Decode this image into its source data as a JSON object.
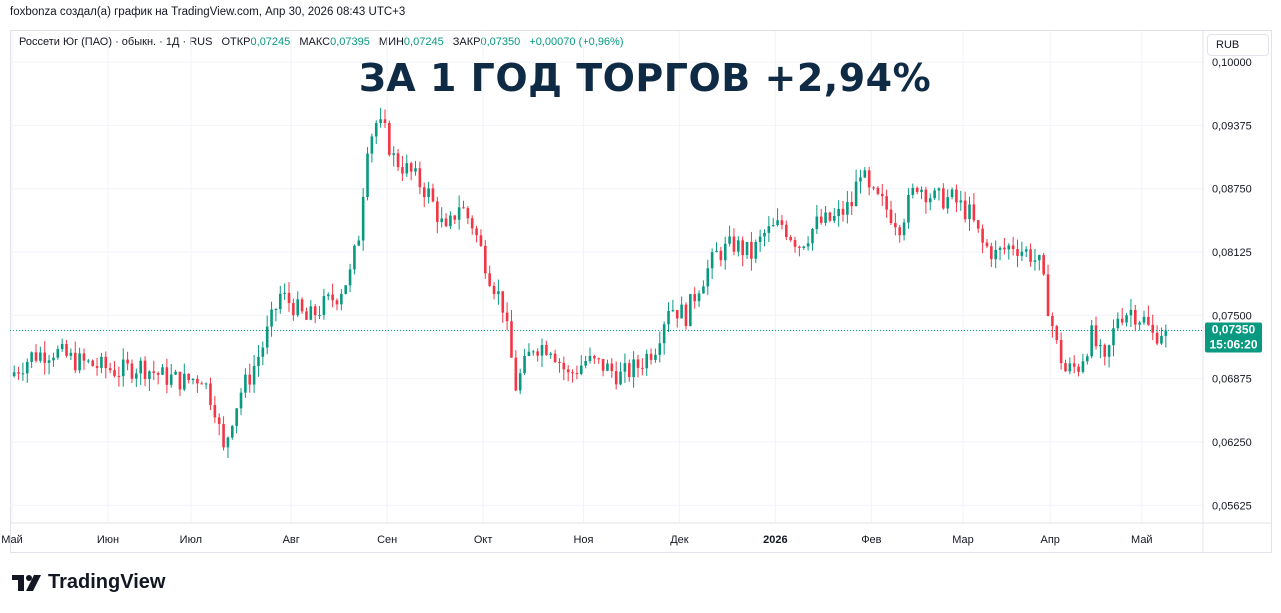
{
  "header": {
    "text": "foxbonza создал(а) график на TradingView.com, Апр 30, 2026 08:43 UTC+3"
  },
  "legend": {
    "symbol": "Россети Юг (ПАО) · обыкн. · 1Д · RUS",
    "open_label": "ОТКР",
    "open": "0,07245",
    "high_label": "МАКС",
    "high": "0,07395",
    "low_label": "МИН",
    "low": "0,07245",
    "close_label": "ЗАКР",
    "close": "0,07350",
    "change": "+0,00070 (+0,96%)"
  },
  "currency_button": "RUB",
  "overlay_title": "ЗА 1 ГОД ТОРГОВ +2,94%",
  "price_tag": {
    "price": "0,07350",
    "countdown": "15:06:20"
  },
  "brand": {
    "name": "TradingView"
  },
  "colors": {
    "up": "#089981",
    "down": "#f23645",
    "grid": "#f0f3fa",
    "last_price_line": "#089981",
    "title": "#0e2a44"
  },
  "chart_data": {
    "type": "candlestick",
    "ylim": [
      0.0545,
      0.1005
    ],
    "y_ticks": [
      "0,10000",
      "0,09375",
      "0,08750",
      "0,08125",
      "0,07500",
      "0,06875",
      "0,06250",
      "0,05625"
    ],
    "y_tick_values": [
      0.1,
      0.09375,
      0.0875,
      0.08125,
      0.075,
      0.06875,
      0.0625,
      0.05625
    ],
    "x_ticks": [
      "Май",
      "Июн",
      "Июл",
      "Авг",
      "Сен",
      "Окт",
      "Ноя",
      "Дек",
      "2026",
      "Фев",
      "Мар",
      "Апр",
      "Май"
    ],
    "x_tick_bold": [
      false,
      false,
      false,
      false,
      false,
      false,
      false,
      false,
      true,
      false,
      false,
      false,
      false
    ],
    "x_tick_days": [
      0,
      22,
      41,
      64,
      86,
      108,
      131,
      153,
      175,
      197,
      218,
      238,
      259
    ],
    "last_close": 0.0735,
    "close_path": [
      [
        0,
        0.069
      ],
      [
        5,
        0.071
      ],
      [
        10,
        0.0715
      ],
      [
        15,
        0.0705
      ],
      [
        20,
        0.07
      ],
      [
        25,
        0.0695
      ],
      [
        30,
        0.07
      ],
      [
        35,
        0.069
      ],
      [
        40,
        0.0685
      ],
      [
        44,
        0.069
      ],
      [
        47,
        0.066
      ],
      [
        49,
        0.0615
      ],
      [
        51,
        0.065
      ],
      [
        53,
        0.0675
      ],
      [
        55,
        0.069
      ],
      [
        58,
        0.072
      ],
      [
        62,
        0.077
      ],
      [
        65,
        0.076
      ],
      [
        68,
        0.0745
      ],
      [
        72,
        0.076
      ],
      [
        75,
        0.077
      ],
      [
        78,
        0.079
      ],
      [
        80,
        0.083
      ],
      [
        82,
        0.092
      ],
      [
        84,
        0.094
      ],
      [
        86,
        0.093
      ],
      [
        88,
        0.0905
      ],
      [
        92,
        0.089
      ],
      [
        96,
        0.087
      ],
      [
        100,
        0.083
      ],
      [
        103,
        0.086
      ],
      [
        106,
        0.084
      ],
      [
        110,
        0.079
      ],
      [
        113,
        0.076
      ],
      [
        116,
        0.068
      ],
      [
        120,
        0.072
      ],
      [
        124,
        0.072
      ],
      [
        128,
        0.069
      ],
      [
        132,
        0.0705
      ],
      [
        136,
        0.07
      ],
      [
        140,
        0.069
      ],
      [
        144,
        0.07
      ],
      [
        148,
        0.072
      ],
      [
        151,
        0.076
      ],
      [
        155,
        0.075
      ],
      [
        158,
        0.078
      ],
      [
        162,
        0.081
      ],
      [
        166,
        0.082
      ],
      [
        170,
        0.081
      ],
      [
        173,
        0.083
      ],
      [
        177,
        0.084
      ],
      [
        181,
        0.082
      ],
      [
        185,
        0.084
      ],
      [
        189,
        0.0845
      ],
      [
        193,
        0.086
      ],
      [
        195,
        0.0895
      ],
      [
        197,
        0.087
      ],
      [
        200,
        0.086
      ],
      [
        204,
        0.084
      ],
      [
        208,
        0.088
      ],
      [
        212,
        0.0865
      ],
      [
        216,
        0.0865
      ],
      [
        220,
        0.085
      ],
      [
        223,
        0.082
      ],
      [
        226,
        0.081
      ],
      [
        230,
        0.082
      ],
      [
        234,
        0.081
      ],
      [
        236,
        0.08
      ],
      [
        238,
        0.076
      ],
      [
        240,
        0.072
      ],
      [
        242,
        0.0695
      ],
      [
        245,
        0.07
      ],
      [
        248,
        0.073
      ],
      [
        251,
        0.07
      ],
      [
        254,
        0.075
      ],
      [
        257,
        0.0755
      ],
      [
        260,
        0.0745
      ],
      [
        262,
        0.073
      ],
      [
        264,
        0.0735
      ]
    ]
  }
}
